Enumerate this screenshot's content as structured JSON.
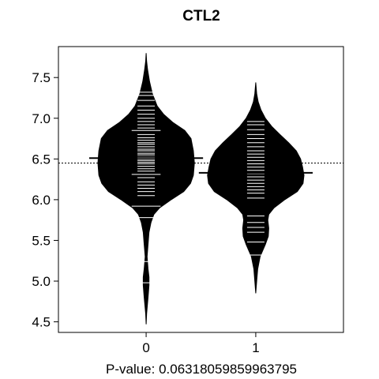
{
  "chart_data": {
    "type": "beanplot",
    "title": "CTL2",
    "xlabel": "P-value: 0.0631805985996379​5",
    "xlabel_text": "P-value: 0.06318059859963795",
    "categories": [
      "0",
      "1"
    ],
    "ylim": [
      4.37,
      7.88
    ],
    "yticks": [
      4.5,
      5.0,
      5.5,
      6.0,
      6.5,
      7.0,
      7.5
    ],
    "ytick_labels": [
      "4.5",
      "5.0",
      "5.5",
      "6.0",
      "6.5",
      "7.0",
      "7.5"
    ],
    "overall_mean": 6.45,
    "fill_color": "#000000",
    "line_color": "#ffffff",
    "groups": [
      {
        "category": "0",
        "mean": 6.51,
        "density_profile": [
          [
            4.47,
            0.0
          ],
          [
            4.6,
            0.01
          ],
          [
            4.8,
            0.04
          ],
          [
            4.95,
            0.06
          ],
          [
            5.05,
            0.06
          ],
          [
            5.15,
            0.04
          ],
          [
            5.3,
            0.02
          ],
          [
            5.45,
            0.04
          ],
          [
            5.6,
            0.06
          ],
          [
            5.72,
            0.1
          ],
          [
            5.82,
            0.16
          ],
          [
            5.9,
            0.28
          ],
          [
            6.0,
            0.52
          ],
          [
            6.1,
            0.78
          ],
          [
            6.2,
            0.92
          ],
          [
            6.3,
            0.98
          ],
          [
            6.45,
            1.0
          ],
          [
            6.6,
            0.98
          ],
          [
            6.75,
            0.93
          ],
          [
            6.85,
            0.8
          ],
          [
            6.95,
            0.55
          ],
          [
            7.05,
            0.36
          ],
          [
            7.15,
            0.23
          ],
          [
            7.3,
            0.13
          ],
          [
            7.45,
            0.07
          ],
          [
            7.6,
            0.03
          ],
          [
            7.7,
            0.01
          ],
          [
            7.8,
            0.0
          ]
        ],
        "observations": [
          4.98,
          5.24,
          5.78,
          5.92,
          6.05,
          6.1,
          6.14,
          6.18,
          6.22,
          6.27,
          6.31,
          6.35,
          6.38,
          6.41,
          6.44,
          6.46,
          6.48,
          6.5,
          6.52,
          6.55,
          6.57,
          6.6,
          6.62,
          6.65,
          6.68,
          6.7,
          6.73,
          6.76,
          6.8,
          6.85,
          6.88,
          6.92,
          6.96,
          7.0,
          7.05,
          7.1,
          7.15,
          7.22,
          7.28,
          7.32
        ],
        "wide_lines": [
          4.98,
          5.24,
          5.92,
          6.31,
          6.85
        ]
      },
      {
        "category": "1",
        "mean": 6.33,
        "density_profile": [
          [
            4.85,
            0.0
          ],
          [
            5.0,
            0.02
          ],
          [
            5.15,
            0.04
          ],
          [
            5.3,
            0.09
          ],
          [
            5.45,
            0.2
          ],
          [
            5.55,
            0.26
          ],
          [
            5.65,
            0.27
          ],
          [
            5.75,
            0.25
          ],
          [
            5.82,
            0.27
          ],
          [
            5.9,
            0.38
          ],
          [
            6.0,
            0.6
          ],
          [
            6.1,
            0.86
          ],
          [
            6.2,
            0.98
          ],
          [
            6.3,
            1.0
          ],
          [
            6.4,
            0.97
          ],
          [
            6.5,
            0.93
          ],
          [
            6.6,
            0.84
          ],
          [
            6.7,
            0.68
          ],
          [
            6.8,
            0.5
          ],
          [
            6.9,
            0.33
          ],
          [
            7.0,
            0.2
          ],
          [
            7.1,
            0.11
          ],
          [
            7.2,
            0.05
          ],
          [
            7.3,
            0.02
          ],
          [
            7.44,
            0.0
          ]
        ],
        "observations": [
          5.32,
          5.48,
          5.6,
          5.66,
          5.72,
          5.8,
          6.02,
          6.08,
          6.12,
          6.16,
          6.2,
          6.24,
          6.28,
          6.32,
          6.36,
          6.4,
          6.44,
          6.48,
          6.52,
          6.56,
          6.6,
          6.65,
          6.7,
          6.75,
          6.8,
          6.86,
          6.92,
          6.96
        ],
        "wide_lines": []
      }
    ],
    "grid": false,
    "legend": "none"
  }
}
